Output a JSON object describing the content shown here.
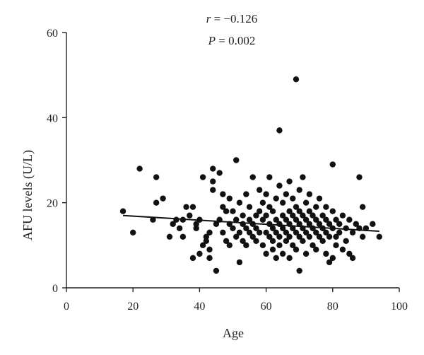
{
  "colors": {
    "points": "#111111",
    "axis": "#222222",
    "fit_line": "#111111",
    "background": "#ffffff"
  },
  "chart_data": {
    "type": "scatter",
    "title": "",
    "xlabel": "Age",
    "ylabel": "AFU levels (U/L)",
    "xlim": [
      0,
      100
    ],
    "ylim": [
      0,
      60
    ],
    "x_ticks": [
      0,
      20,
      40,
      60,
      80,
      100
    ],
    "y_ticks": [
      0,
      20,
      40,
      60
    ],
    "grid": false,
    "legend": "none",
    "annotations": {
      "r_label": "r",
      "r_value": " = −0.126",
      "p_label": "P",
      "p_value": " = 0.002"
    },
    "fit_line": {
      "x": [
        17,
        94
      ],
      "y": [
        17.0,
        13.3
      ]
    },
    "series": [
      {
        "points": [
          [
            17,
            18
          ],
          [
            20,
            13
          ],
          [
            22,
            28
          ],
          [
            26,
            16
          ],
          [
            27,
            26
          ],
          [
            27,
            20
          ],
          [
            29,
            21
          ],
          [
            31,
            12
          ],
          [
            32,
            15
          ],
          [
            33,
            16
          ],
          [
            34,
            14
          ],
          [
            35,
            16
          ],
          [
            35,
            12
          ],
          [
            36,
            19
          ],
          [
            37,
            17
          ],
          [
            38,
            19
          ],
          [
            38,
            7
          ],
          [
            39,
            14
          ],
          [
            39,
            15
          ],
          [
            40,
            16
          ],
          [
            40,
            8
          ],
          [
            41,
            26
          ],
          [
            41,
            10
          ],
          [
            42,
            12
          ],
          [
            42,
            11
          ],
          [
            43,
            9
          ],
          [
            43,
            13
          ],
          [
            43,
            7
          ],
          [
            44,
            25
          ],
          [
            44,
            28
          ],
          [
            44,
            23
          ],
          [
            45,
            15
          ],
          [
            45,
            4
          ],
          [
            46,
            27
          ],
          [
            46,
            16
          ],
          [
            47,
            19
          ],
          [
            47,
            22
          ],
          [
            47,
            13
          ],
          [
            48,
            18
          ],
          [
            48,
            11
          ],
          [
            49,
            15
          ],
          [
            49,
            21
          ],
          [
            49,
            10
          ],
          [
            50,
            14
          ],
          [
            50,
            18
          ],
          [
            51,
            30
          ],
          [
            51,
            16
          ],
          [
            51,
            12
          ],
          [
            52,
            6
          ],
          [
            52,
            13
          ],
          [
            52,
            20
          ],
          [
            53,
            15
          ],
          [
            53,
            11
          ],
          [
            53,
            17
          ],
          [
            54,
            14
          ],
          [
            54,
            22
          ],
          [
            54,
            10
          ],
          [
            55,
            16
          ],
          [
            55,
            13
          ],
          [
            55,
            19
          ],
          [
            56,
            12
          ],
          [
            56,
            15
          ],
          [
            56,
            26
          ],
          [
            57,
            11
          ],
          [
            57,
            17
          ],
          [
            57,
            14
          ],
          [
            58,
            23
          ],
          [
            58,
            18
          ],
          [
            58,
            13
          ],
          [
            59,
            16
          ],
          [
            59,
            10
          ],
          [
            59,
            20
          ],
          [
            60,
            13
          ],
          [
            60,
            17
          ],
          [
            60,
            8
          ],
          [
            60,
            22
          ],
          [
            61,
            12
          ],
          [
            61,
            15
          ],
          [
            61,
            19
          ],
          [
            61,
            26
          ],
          [
            62,
            14
          ],
          [
            62,
            11
          ],
          [
            62,
            18
          ],
          [
            62,
            9
          ],
          [
            63,
            16
          ],
          [
            63,
            13
          ],
          [
            63,
            21
          ],
          [
            63,
            7
          ],
          [
            64,
            37
          ],
          [
            64,
            15
          ],
          [
            64,
            12
          ],
          [
            64,
            24
          ],
          [
            64,
            10
          ],
          [
            65,
            17
          ],
          [
            65,
            14
          ],
          [
            65,
            20
          ],
          [
            65,
            8
          ],
          [
            66,
            13
          ],
          [
            66,
            16
          ],
          [
            66,
            22
          ],
          [
            66,
            11
          ],
          [
            67,
            15
          ],
          [
            67,
            18
          ],
          [
            67,
            12
          ],
          [
            67,
            25
          ],
          [
            67,
            7
          ],
          [
            68,
            14
          ],
          [
            68,
            17
          ],
          [
            68,
            10
          ],
          [
            68,
            21
          ],
          [
            69,
            49
          ],
          [
            69,
            16
          ],
          [
            69,
            13
          ],
          [
            69,
            19
          ],
          [
            69,
            9
          ],
          [
            70,
            15
          ],
          [
            70,
            12
          ],
          [
            70,
            18
          ],
          [
            70,
            4
          ],
          [
            70,
            23
          ],
          [
            71,
            14
          ],
          [
            71,
            17
          ],
          [
            71,
            11
          ],
          [
            71,
            26
          ],
          [
            72,
            16
          ],
          [
            72,
            13
          ],
          [
            72,
            20
          ],
          [
            72,
            8
          ],
          [
            73,
            15
          ],
          [
            73,
            12
          ],
          [
            73,
            18
          ],
          [
            73,
            22
          ],
          [
            74,
            14
          ],
          [
            74,
            17
          ],
          [
            74,
            10
          ],
          [
            75,
            16
          ],
          [
            75,
            13
          ],
          [
            75,
            19
          ],
          [
            75,
            9
          ],
          [
            76,
            15
          ],
          [
            76,
            12
          ],
          [
            76,
            21
          ],
          [
            77,
            14
          ],
          [
            77,
            17
          ],
          [
            77,
            11
          ],
          [
            78,
            16
          ],
          [
            78,
            13
          ],
          [
            78,
            19
          ],
          [
            78,
            8
          ],
          [
            79,
            15
          ],
          [
            79,
            12
          ],
          [
            79,
            6
          ],
          [
            80,
            29
          ],
          [
            80,
            14
          ],
          [
            80,
            18
          ],
          [
            80,
            7
          ],
          [
            81,
            16
          ],
          [
            81,
            12
          ],
          [
            81,
            10
          ],
          [
            82,
            15
          ],
          [
            82,
            13
          ],
          [
            83,
            17
          ],
          [
            83,
            9
          ],
          [
            84,
            14
          ],
          [
            84,
            11
          ],
          [
            85,
            16
          ],
          [
            85,
            8
          ],
          [
            86,
            13
          ],
          [
            86,
            7
          ],
          [
            87,
            15
          ],
          [
            88,
            26
          ],
          [
            88,
            14
          ],
          [
            89,
            19
          ],
          [
            89,
            12
          ],
          [
            90,
            14
          ],
          [
            92,
            15
          ],
          [
            94,
            12
          ]
        ]
      }
    ]
  }
}
